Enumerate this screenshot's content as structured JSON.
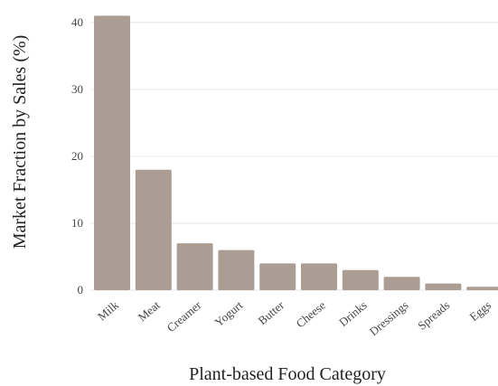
{
  "chart_data": {
    "type": "bar",
    "title": "",
    "xlabel": "Plant-based Food Category",
    "ylabel": "Market Fraction by Sales (%)",
    "categories": [
      "Milk",
      "Meat",
      "Creamer",
      "Yogurt",
      "Butter",
      "Cheese",
      "Drinks",
      "Dressings",
      "Spreads",
      "Eggs"
    ],
    "values": [
      41,
      18,
      7,
      6,
      4,
      4,
      3,
      2,
      1,
      0.5
    ],
    "ylim": [
      0,
      42
    ],
    "yticks": [
      0,
      10,
      20,
      30,
      40
    ],
    "grid": true,
    "bar_color": "#ab9c94",
    "grid_color": "#e6e6e6",
    "legend": "none"
  }
}
